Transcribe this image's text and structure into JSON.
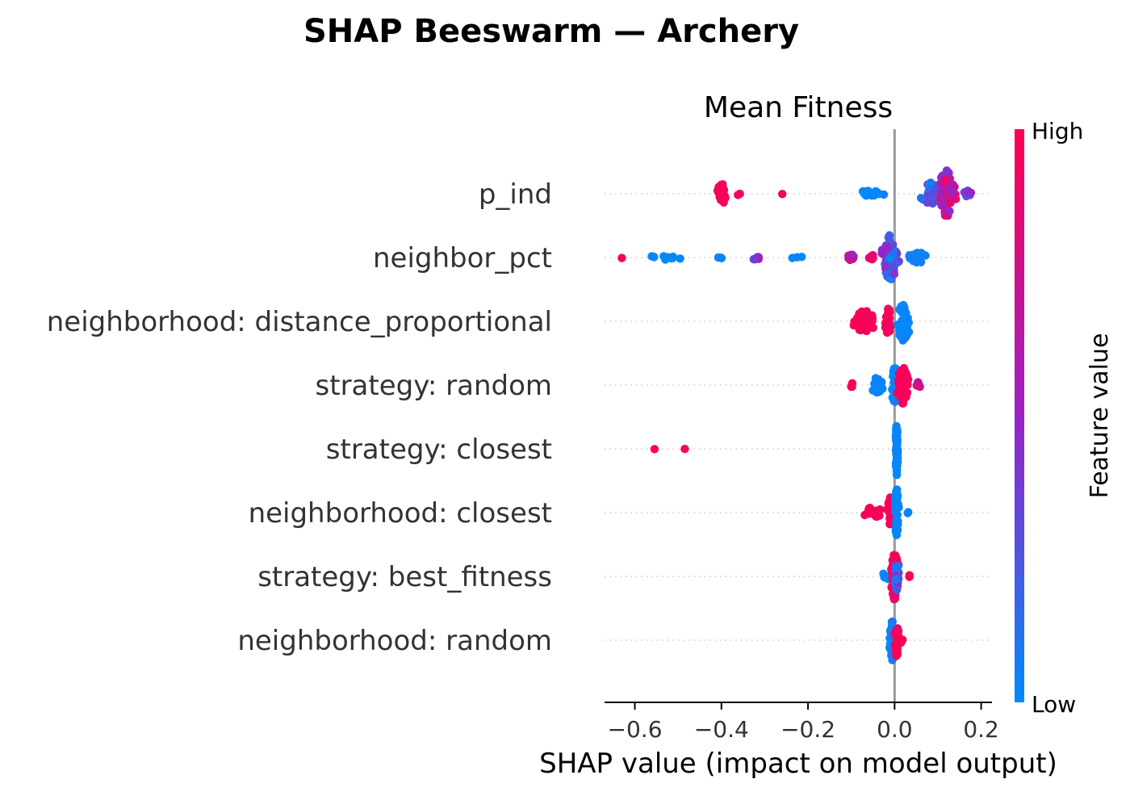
{
  "figure_title": "SHAP Beeswarm — Archery",
  "chart_data": {
    "type": "scatter",
    "subtype": "shap_beeswarm",
    "title": "Mean Fitness",
    "xlabel": "SHAP value (impact on model output)",
    "xlim": [
      -0.67,
      0.225
    ],
    "xticks": [
      -0.6,
      -0.4,
      -0.2,
      0.0,
      0.2
    ],
    "xtick_labels": [
      "−0.6",
      "−0.4",
      "−0.2",
      "0.0",
      "0.2"
    ],
    "zero_line": 0.0,
    "colorbar": {
      "label": "Feature value",
      "high_label": "High",
      "low_label": "Low",
      "low_color": "#008bfb",
      "mid_color": "#9a22c5",
      "high_color": "#ff0052"
    },
    "features": [
      {
        "name": "p_ind",
        "clusters": [
          {
            "x": -0.4,
            "spread": 0.022,
            "n": 40,
            "hmin": 0.9,
            "hmax": 1.0,
            "w": 14
          },
          {
            "x": -0.36,
            "spread": 0.008,
            "n": 2,
            "hmin": 0.9,
            "hmax": 1.0,
            "w": 3
          },
          {
            "x": -0.26,
            "spread": 0.002,
            "n": 1,
            "hmin": 0.9,
            "hmax": 1.0,
            "w": 1
          },
          {
            "x": -0.06,
            "spread": 0.07,
            "n": 14,
            "hmin": 0.0,
            "hmax": 0.05,
            "w": 4
          },
          {
            "x": 0.09,
            "spread": 0.05,
            "n": 40,
            "hmin": 0.0,
            "hmax": 0.45,
            "w": 16
          },
          {
            "x": 0.12,
            "spread": 0.035,
            "n": 60,
            "hmin": 0.4,
            "hmax": 0.95,
            "w": 30
          },
          {
            "x": 0.17,
            "spread": 0.03,
            "n": 10,
            "hmin": 0.0,
            "hmax": 0.6,
            "w": 4
          }
        ]
      },
      {
        "name": "neighbor_pct",
        "clusters": [
          {
            "x": -0.63,
            "spread": 0.004,
            "n": 1,
            "hmin": 0.95,
            "hmax": 1.0,
            "w": 1
          },
          {
            "x": -0.53,
            "spread": 0.07,
            "n": 12,
            "hmin": 0.0,
            "hmax": 0.05,
            "w": 3
          },
          {
            "x": -0.4,
            "spread": 0.03,
            "n": 3,
            "hmin": 0.0,
            "hmax": 0.05,
            "w": 1
          },
          {
            "x": -0.32,
            "spread": 0.02,
            "n": 6,
            "hmin": 0.3,
            "hmax": 0.6,
            "w": 3
          },
          {
            "x": -0.22,
            "spread": 0.04,
            "n": 3,
            "hmin": 0.0,
            "hmax": 0.05,
            "w": 1
          },
          {
            "x": -0.1,
            "spread": 0.025,
            "n": 14,
            "hmin": 0.5,
            "hmax": 0.85,
            "w": 4
          },
          {
            "x": -0.05,
            "spread": 0.02,
            "n": 6,
            "hmin": 0.85,
            "hmax": 1.0,
            "w": 3
          },
          {
            "x": -0.01,
            "spread": 0.03,
            "n": 70,
            "hmin": 0.0,
            "hmax": 0.5,
            "w": 30
          },
          {
            "x": 0.05,
            "spread": 0.04,
            "n": 22,
            "hmin": 0.0,
            "hmax": 0.1,
            "w": 8
          }
        ]
      },
      {
        "name": "neighborhood: distance_proportional",
        "clusters": [
          {
            "x": -0.07,
            "spread": 0.045,
            "n": 55,
            "hmin": 0.92,
            "hmax": 1.0,
            "w": 14
          },
          {
            "x": -0.015,
            "spread": 0.012,
            "n": 20,
            "hmin": 0.92,
            "hmax": 1.0,
            "w": 18
          },
          {
            "x": 0.02,
            "spread": 0.025,
            "n": 60,
            "hmin": 0.0,
            "hmax": 0.05,
            "w": 26
          }
        ]
      },
      {
        "name": "strategy: random",
        "clusters": [
          {
            "x": -0.1,
            "spread": 0.008,
            "n": 3,
            "hmin": 0.95,
            "hmax": 1.0,
            "w": 3
          },
          {
            "x": -0.04,
            "spread": 0.03,
            "n": 20,
            "hmin": 0.0,
            "hmax": 0.05,
            "w": 10
          },
          {
            "x": 0.0,
            "spread": 0.012,
            "n": 40,
            "hmin": 0.0,
            "hmax": 0.05,
            "w": 26
          },
          {
            "x": 0.02,
            "spread": 0.025,
            "n": 60,
            "hmin": 0.92,
            "hmax": 1.0,
            "w": 24
          },
          {
            "x": 0.055,
            "spread": 0.01,
            "n": 6,
            "hmin": 0.55,
            "hmax": 0.8,
            "w": 6
          }
        ]
      },
      {
        "name": "strategy: closest",
        "clusters": [
          {
            "x": -0.555,
            "spread": 0.003,
            "n": 1,
            "hmin": 0.95,
            "hmax": 1.0,
            "w": 1
          },
          {
            "x": -0.485,
            "spread": 0.003,
            "n": 1,
            "hmin": 0.95,
            "hmax": 1.0,
            "w": 1
          },
          {
            "x": 0.005,
            "spread": 0.004,
            "n": 80,
            "hmin": 0.0,
            "hmax": 0.05,
            "w": 34
          }
        ]
      },
      {
        "name": "neighborhood: closest",
        "clusters": [
          {
            "x": -0.05,
            "spread": 0.03,
            "n": 20,
            "hmin": 0.92,
            "hmax": 1.0,
            "w": 8
          },
          {
            "x": -0.01,
            "spread": 0.012,
            "n": 30,
            "hmin": 0.92,
            "hmax": 1.0,
            "w": 20
          },
          {
            "x": 0.005,
            "spread": 0.008,
            "n": 50,
            "hmin": 0.0,
            "hmax": 0.05,
            "w": 32
          },
          {
            "x": 0.03,
            "spread": 0.005,
            "n": 2,
            "hmin": 0.0,
            "hmax": 0.05,
            "w": 1
          }
        ]
      },
      {
        "name": "strategy: best_fitness",
        "clusters": [
          {
            "x": -0.02,
            "spread": 0.012,
            "n": 8,
            "hmin": 0.0,
            "hmax": 0.05,
            "w": 6
          },
          {
            "x": 0.0,
            "spread": 0.015,
            "n": 80,
            "hmin": 0.85,
            "hmax": 1.0,
            "w": 32
          },
          {
            "x": 0.005,
            "spread": 0.01,
            "n": 30,
            "hmin": 0.0,
            "hmax": 0.5,
            "w": 20
          },
          {
            "x": 0.035,
            "spread": 0.005,
            "n": 2,
            "hmin": 0.95,
            "hmax": 1.0,
            "w": 2
          }
        ]
      },
      {
        "name": "neighborhood: random",
        "clusters": [
          {
            "x": -0.005,
            "spread": 0.01,
            "n": 60,
            "hmin": 0.0,
            "hmax": 0.1,
            "w": 26
          },
          {
            "x": 0.005,
            "spread": 0.01,
            "n": 40,
            "hmin": 0.85,
            "hmax": 1.0,
            "w": 22
          },
          {
            "x": 0.015,
            "spread": 0.005,
            "n": 4,
            "hmin": 0.92,
            "hmax": 1.0,
            "w": 3
          }
        ]
      }
    ]
  }
}
